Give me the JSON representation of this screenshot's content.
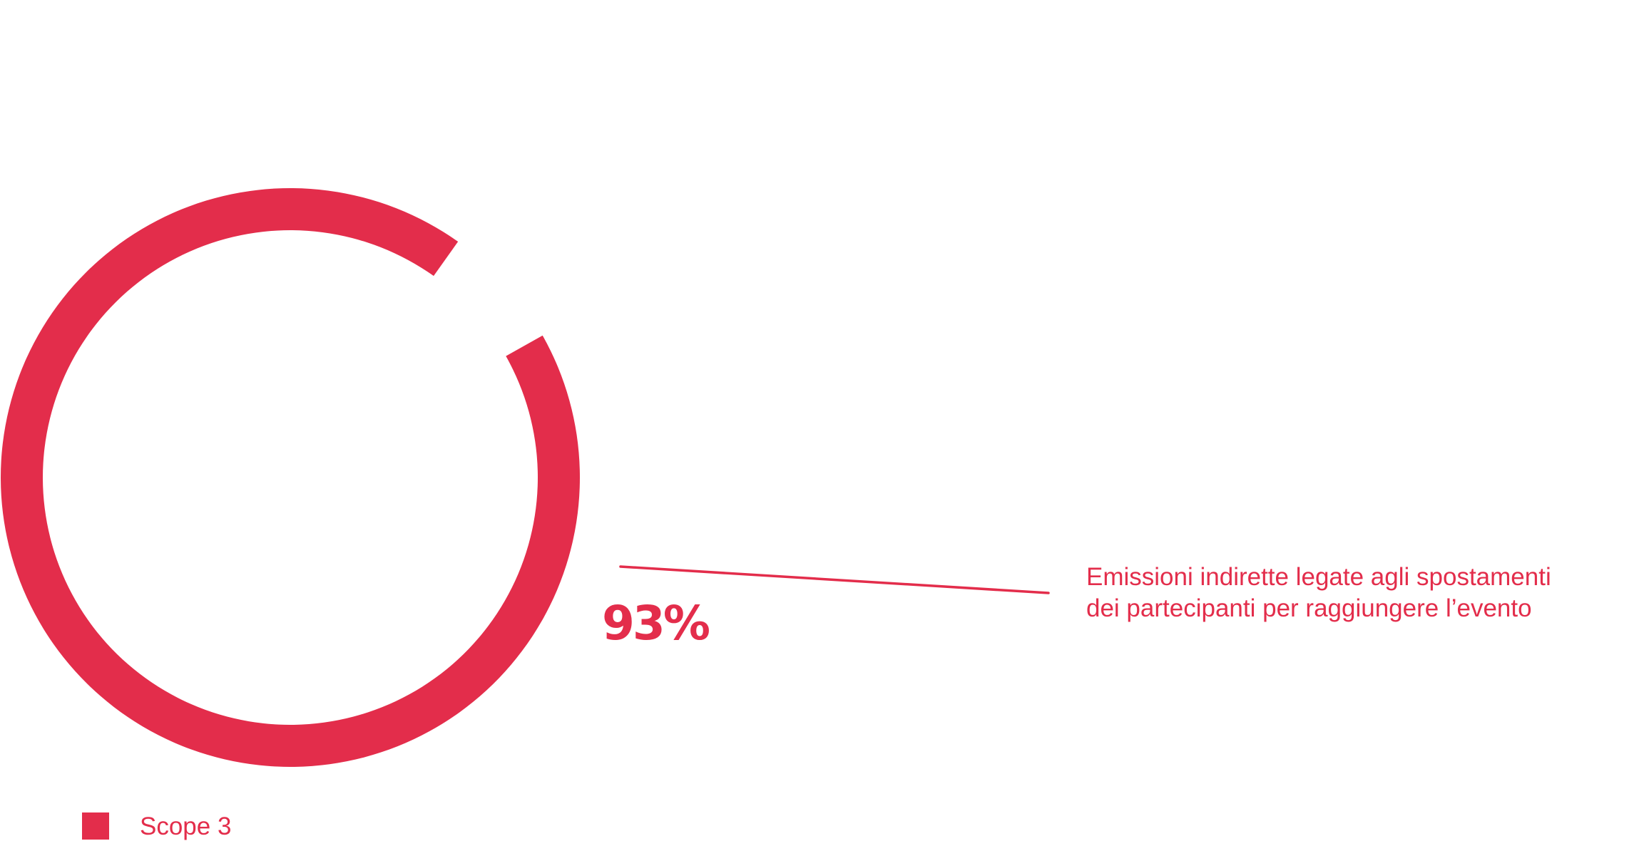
{
  "theme": {
    "accent": "#E32D4B",
    "background": "#FFFFFF"
  },
  "chart_data": {
    "type": "pie",
    "style": "donut",
    "slices": [
      {
        "name": "Scope 3",
        "value": 93,
        "value_label": "93%",
        "annotation": [
          "Emissioni indirette legate agli spostamenti",
          "dei partecipanti per raggiungere l’evento"
        ],
        "color": "#E32D4B"
      }
    ],
    "total": 100,
    "legend": [
      {
        "label": "Scope 3",
        "color": "#E32D4B"
      }
    ],
    "legend_position": "bottom-left"
  }
}
